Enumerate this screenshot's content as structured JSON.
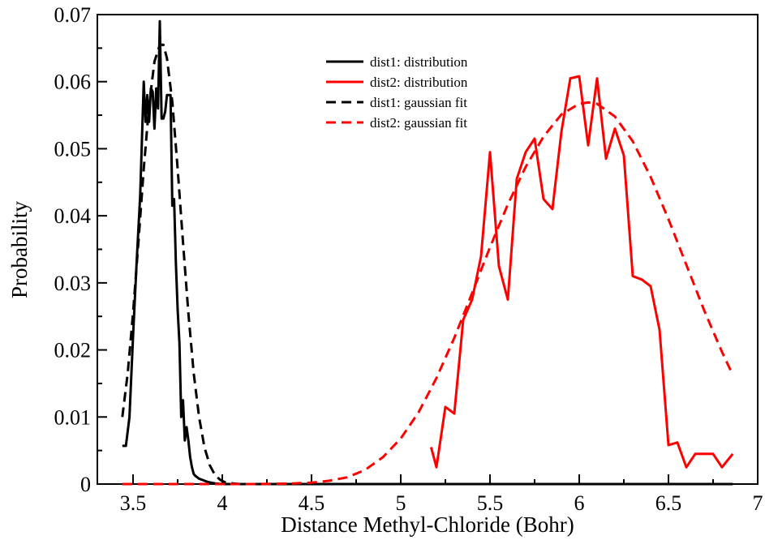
{
  "chart_data": {
    "type": "line",
    "title": "",
    "xlabel": "Distance Methyl-Chloride (Bohr)",
    "ylabel": "Probability",
    "xlim": [
      3.3,
      7.0
    ],
    "ylim": [
      0,
      0.07
    ],
    "x_ticks": [
      3.5,
      4,
      4.5,
      5,
      5.5,
      6,
      6.5,
      7
    ],
    "x_tick_labels": [
      "3.5",
      "4",
      "4.5",
      "5",
      "5.5",
      "6",
      "6.5",
      "7"
    ],
    "y_ticks": [
      0,
      0.01,
      0.02,
      0.03,
      0.04,
      0.05,
      0.06,
      0.07
    ],
    "y_tick_labels": [
      "0",
      "0.01",
      "0.02",
      "0.03",
      "0.04",
      "0.05",
      "0.06",
      "0.07"
    ],
    "grid": false,
    "legend_position": "top-center",
    "series": [
      {
        "name": "dist1: distribution",
        "color": "#000000",
        "style": "solid",
        "x": [
          3.44,
          3.46,
          3.48,
          3.5,
          3.52,
          3.54,
          3.56,
          3.57,
          3.58,
          3.59,
          3.6,
          3.61,
          3.62,
          3.63,
          3.64,
          3.65,
          3.66,
          3.67,
          3.68,
          3.69,
          3.7,
          3.71,
          3.72,
          3.73,
          3.74,
          3.75,
          3.76,
          3.77,
          3.78,
          3.79,
          3.8,
          3.81,
          3.82,
          3.83,
          3.84,
          3.85,
          3.86,
          3.87,
          3.88,
          3.89,
          3.9,
          3.92,
          3.94,
          3.96,
          3.98,
          4.0,
          4.03,
          4.06,
          4.1,
          4.2,
          4.4,
          4.6,
          4.8,
          5.0,
          5.2,
          5.4,
          5.6,
          5.8,
          6.0,
          6.2,
          6.4,
          6.6,
          6.86
        ],
        "y": [
          0.0057,
          0.0057,
          0.01,
          0.022,
          0.033,
          0.043,
          0.06,
          0.054,
          0.058,
          0.054,
          0.059,
          0.0585,
          0.053,
          0.059,
          0.056,
          0.069,
          0.0545,
          0.0545,
          0.0555,
          0.058,
          0.058,
          0.058,
          0.0415,
          0.0425,
          0.033,
          0.026,
          0.021,
          0.01,
          0.0125,
          0.0065,
          0.0085,
          0.0065,
          0.004,
          0.0025,
          0.0015,
          0.0012,
          0.001,
          0.0008,
          0.0007,
          0.0006,
          0.0005,
          0.0003,
          0.0002,
          0.0001,
          5e-05,
          0.0,
          0.0,
          0.0,
          0.0,
          0.0,
          0.0,
          0.0,
          0.0,
          0.0,
          0.0,
          0.0,
          0.0,
          0.0,
          0.0,
          0.0,
          0.0,
          0.0,
          0.0
        ]
      },
      {
        "name": "dist2: distribution",
        "color": "#ff0000",
        "style": "solid",
        "x": [
          5.17,
          5.2,
          5.25,
          5.3,
          5.35,
          5.4,
          5.45,
          5.5,
          5.55,
          5.6,
          5.65,
          5.7,
          5.75,
          5.8,
          5.85,
          5.9,
          5.95,
          6.0,
          6.05,
          6.1,
          6.15,
          6.2,
          6.25,
          6.3,
          6.35,
          6.4,
          6.45,
          6.5,
          6.55,
          6.6,
          6.65,
          6.7,
          6.75,
          6.8,
          6.86
        ],
        "y": [
          0.0055,
          0.0025,
          0.0115,
          0.0105,
          0.0245,
          0.0275,
          0.034,
          0.0495,
          0.0325,
          0.0275,
          0.0455,
          0.0495,
          0.0515,
          0.0425,
          0.041,
          0.0525,
          0.0605,
          0.0608,
          0.0505,
          0.0605,
          0.0485,
          0.053,
          0.049,
          0.031,
          0.0305,
          0.0295,
          0.023,
          0.0058,
          0.0062,
          0.0025,
          0.0045,
          0.0045,
          0.0045,
          0.0025,
          0.0045
        ]
      },
      {
        "name": "dist1: gaussian fit",
        "color": "#000000",
        "style": "dashed",
        "x": [
          3.44,
          3.47,
          3.5,
          3.53,
          3.56,
          3.59,
          3.62,
          3.65,
          3.67,
          3.69,
          3.72,
          3.75,
          3.78,
          3.81,
          3.84,
          3.87,
          3.9,
          3.93,
          3.96,
          3.99,
          4.02,
          4.06,
          4.1,
          4.2,
          4.4,
          4.6,
          4.8,
          5.0,
          5.2,
          5.4,
          5.6,
          5.8,
          6.0,
          6.2,
          6.4,
          6.6,
          6.86
        ],
        "y": [
          0.01,
          0.0165,
          0.0255,
          0.036,
          0.047,
          0.0565,
          0.063,
          0.0655,
          0.0655,
          0.0635,
          0.057,
          0.047,
          0.036,
          0.0255,
          0.0165,
          0.01,
          0.0055,
          0.0028,
          0.0013,
          0.0006,
          0.0002,
          0.0001,
          0.0,
          0.0,
          0.0,
          0.0,
          0.0,
          0.0,
          0.0,
          0.0,
          0.0,
          0.0,
          0.0,
          0.0,
          0.0,
          0.0,
          0.0
        ]
      },
      {
        "name": "dist2: gaussian fit",
        "color": "#ff0000",
        "style": "dashed",
        "x": [
          3.44,
          3.8,
          4.2,
          4.4,
          4.5,
          4.6,
          4.7,
          4.8,
          4.9,
          5.0,
          5.1,
          5.2,
          5.3,
          5.4,
          5.5,
          5.6,
          5.7,
          5.8,
          5.9,
          6.0,
          6.05,
          6.1,
          6.2,
          6.3,
          6.4,
          6.5,
          6.6,
          6.7,
          6.8,
          6.86
        ],
        "y": [
          0.0,
          0.0,
          0.0,
          0.0001,
          0.0002,
          0.0005,
          0.001,
          0.0021,
          0.004,
          0.0068,
          0.0107,
          0.0158,
          0.0218,
          0.0285,
          0.0353,
          0.0417,
          0.0473,
          0.0518,
          0.0551,
          0.0567,
          0.0569,
          0.0567,
          0.0548,
          0.0511,
          0.0458,
          0.0395,
          0.0327,
          0.0259,
          0.0197,
          0.0163
        ]
      }
    ]
  }
}
